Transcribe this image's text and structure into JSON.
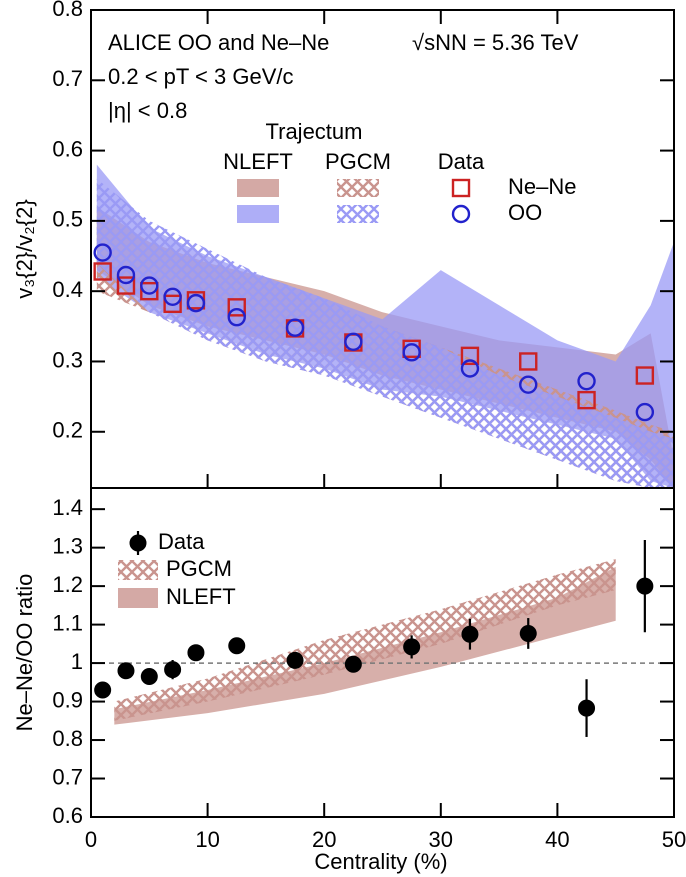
{
  "chart_data": [
    {
      "type": "scatter",
      "annotations": [
        "ALICE OO and Ne–Ne",
        "√sNN = 5.36 TeV",
        "0.2 <  pT < 3 GeV/c",
        "|η| < 0.8"
      ],
      "ylabel": "v₃{2}/v₂{2}",
      "xlim": [
        0,
        50
      ],
      "xticks": [
        0,
        10,
        20,
        30,
        40,
        50
      ],
      "xtick_labels": false,
      "ylim": [
        0.12,
        0.8
      ],
      "yticks": [
        0.2,
        0.3,
        0.4,
        0.5,
        0.6,
        0.7,
        0.8
      ],
      "legend_title": "Trajectum",
      "models": [
        "NLEFT",
        "PGCM"
      ],
      "band_styles": [
        "solid",
        "hatch"
      ],
      "data_label": "Data",
      "series": [
        {
          "name": "Ne–Ne",
          "color": "#cc2222",
          "marker": "square",
          "band_color": "#c9948e",
          "x": [
            1,
            3,
            5,
            7,
            9,
            12.5,
            17.5,
            22.5,
            27.5,
            32.5,
            37.5,
            42.5,
            47.5
          ],
          "values": [
            0.428,
            0.408,
            0.4,
            0.382,
            0.387,
            0.377,
            0.347,
            0.327,
            0.318,
            0.308,
            0.3,
            0.245,
            0.28
          ],
          "bands": [
            {
              "x": [
                0.5,
                5,
                10,
                15,
                20,
                25,
                30,
                35,
                40,
                45,
                48,
                50
              ],
              "lower": [
                0.43,
                0.38,
                0.35,
                0.33,
                0.31,
                0.28,
                0.26,
                0.24,
                0.22,
                0.2,
                0.16,
                0.12
              ],
              "upper": [
                0.52,
                0.47,
                0.44,
                0.42,
                0.4,
                0.37,
                0.35,
                0.33,
                0.32,
                0.31,
                0.34,
                0.16
              ]
            },
            {
              "x": [
                0.5,
                5,
                10,
                15,
                20,
                25,
                30,
                35,
                40,
                45,
                48,
                50
              ],
              "lower": [
                0.4,
                0.37,
                0.33,
                0.3,
                0.28,
                0.25,
                0.22,
                0.19,
                0.16,
                0.13,
                0.12,
                0.12
              ],
              "upper": [
                0.5,
                0.47,
                0.45,
                0.41,
                0.38,
                0.35,
                0.32,
                0.29,
                0.26,
                0.23,
                0.21,
                0.2
              ]
            }
          ]
        },
        {
          "name": "OO",
          "color": "#2222cc",
          "marker": "circle",
          "band_color": "#9a9af5",
          "x": [
            1,
            3,
            5,
            7,
            9,
            12.5,
            17.5,
            22.5,
            27.5,
            32.5,
            37.5,
            42.5,
            47.5
          ],
          "values": [
            0.455,
            0.423,
            0.408,
            0.392,
            0.383,
            0.363,
            0.348,
            0.328,
            0.313,
            0.29,
            0.267,
            0.272,
            0.228
          ],
          "bands": [
            {
              "x": [
                0.5,
                5,
                10,
                15,
                20,
                25,
                30,
                35,
                40,
                45,
                48,
                50
              ],
              "lower": [
                0.42,
                0.37,
                0.34,
                0.31,
                0.29,
                0.26,
                0.25,
                0.23,
                0.21,
                0.19,
                0.13,
                0.12
              ],
              "upper": [
                0.58,
                0.49,
                0.45,
                0.42,
                0.39,
                0.36,
                0.43,
                0.38,
                0.33,
                0.3,
                0.38,
                0.47
              ]
            },
            {
              "x": [
                0.5,
                5,
                10,
                15,
                20,
                25,
                30,
                35,
                40,
                45,
                48,
                50
              ],
              "lower": [
                0.44,
                0.37,
                0.33,
                0.3,
                0.28,
                0.25,
                0.22,
                0.19,
                0.16,
                0.13,
                0.12,
                0.12
              ],
              "upper": [
                0.56,
                0.5,
                0.46,
                0.42,
                0.39,
                0.35,
                0.32,
                0.28,
                0.25,
                0.22,
                0.2,
                0.19
              ]
            }
          ]
        }
      ]
    },
    {
      "type": "scatter",
      "ylabel": "Ne–Ne/OO ratio",
      "xlabel": "Centrality (%)",
      "xlim": [
        0,
        50
      ],
      "xticks": [
        0,
        10,
        20,
        30,
        40,
        50
      ],
      "ylim": [
        0.6,
        1.455
      ],
      "yticks": [
        0.6,
        0.7,
        0.8,
        0.9,
        1,
        1.1,
        1.2,
        1.3,
        1.4
      ],
      "reference_line": 1,
      "series": [
        {
          "name": "Data",
          "color": "#000000",
          "marker": "filled-circle",
          "x": [
            1,
            3,
            5,
            7,
            9,
            12.5,
            17.5,
            22.5,
            27.5,
            32.5,
            37.5,
            42.5,
            47.5
          ],
          "values": [
            0.93,
            0.98,
            0.965,
            0.983,
            1.027,
            1.045,
            1.007,
            0.997,
            1.042,
            1.075,
            1.077,
            0.883,
            1.2
          ],
          "errors": [
            0.01,
            0.01,
            0.015,
            0.025,
            0.02,
            0.015,
            0.02,
            0.015,
            0.03,
            0.04,
            0.04,
            0.075,
            0.12
          ]
        }
      ],
      "bands": [
        {
          "name": "PGCM",
          "style": "hatch",
          "color": "#c9948e",
          "x": [
            2,
            10,
            20,
            30,
            40,
            45
          ],
          "lower": [
            0.85,
            0.9,
            0.97,
            1.05,
            1.15,
            1.19
          ],
          "upper": [
            0.9,
            0.96,
            1.06,
            1.14,
            1.23,
            1.27
          ]
        },
        {
          "name": "NLEFT",
          "style": "solid",
          "color": "#c9948e",
          "x": [
            2,
            10,
            20,
            30,
            40,
            45
          ],
          "lower": [
            0.84,
            0.87,
            0.92,
            0.99,
            1.07,
            1.11
          ],
          "upper": [
            0.88,
            0.93,
            1.0,
            1.08,
            1.17,
            1.25
          ]
        }
      ]
    }
  ]
}
